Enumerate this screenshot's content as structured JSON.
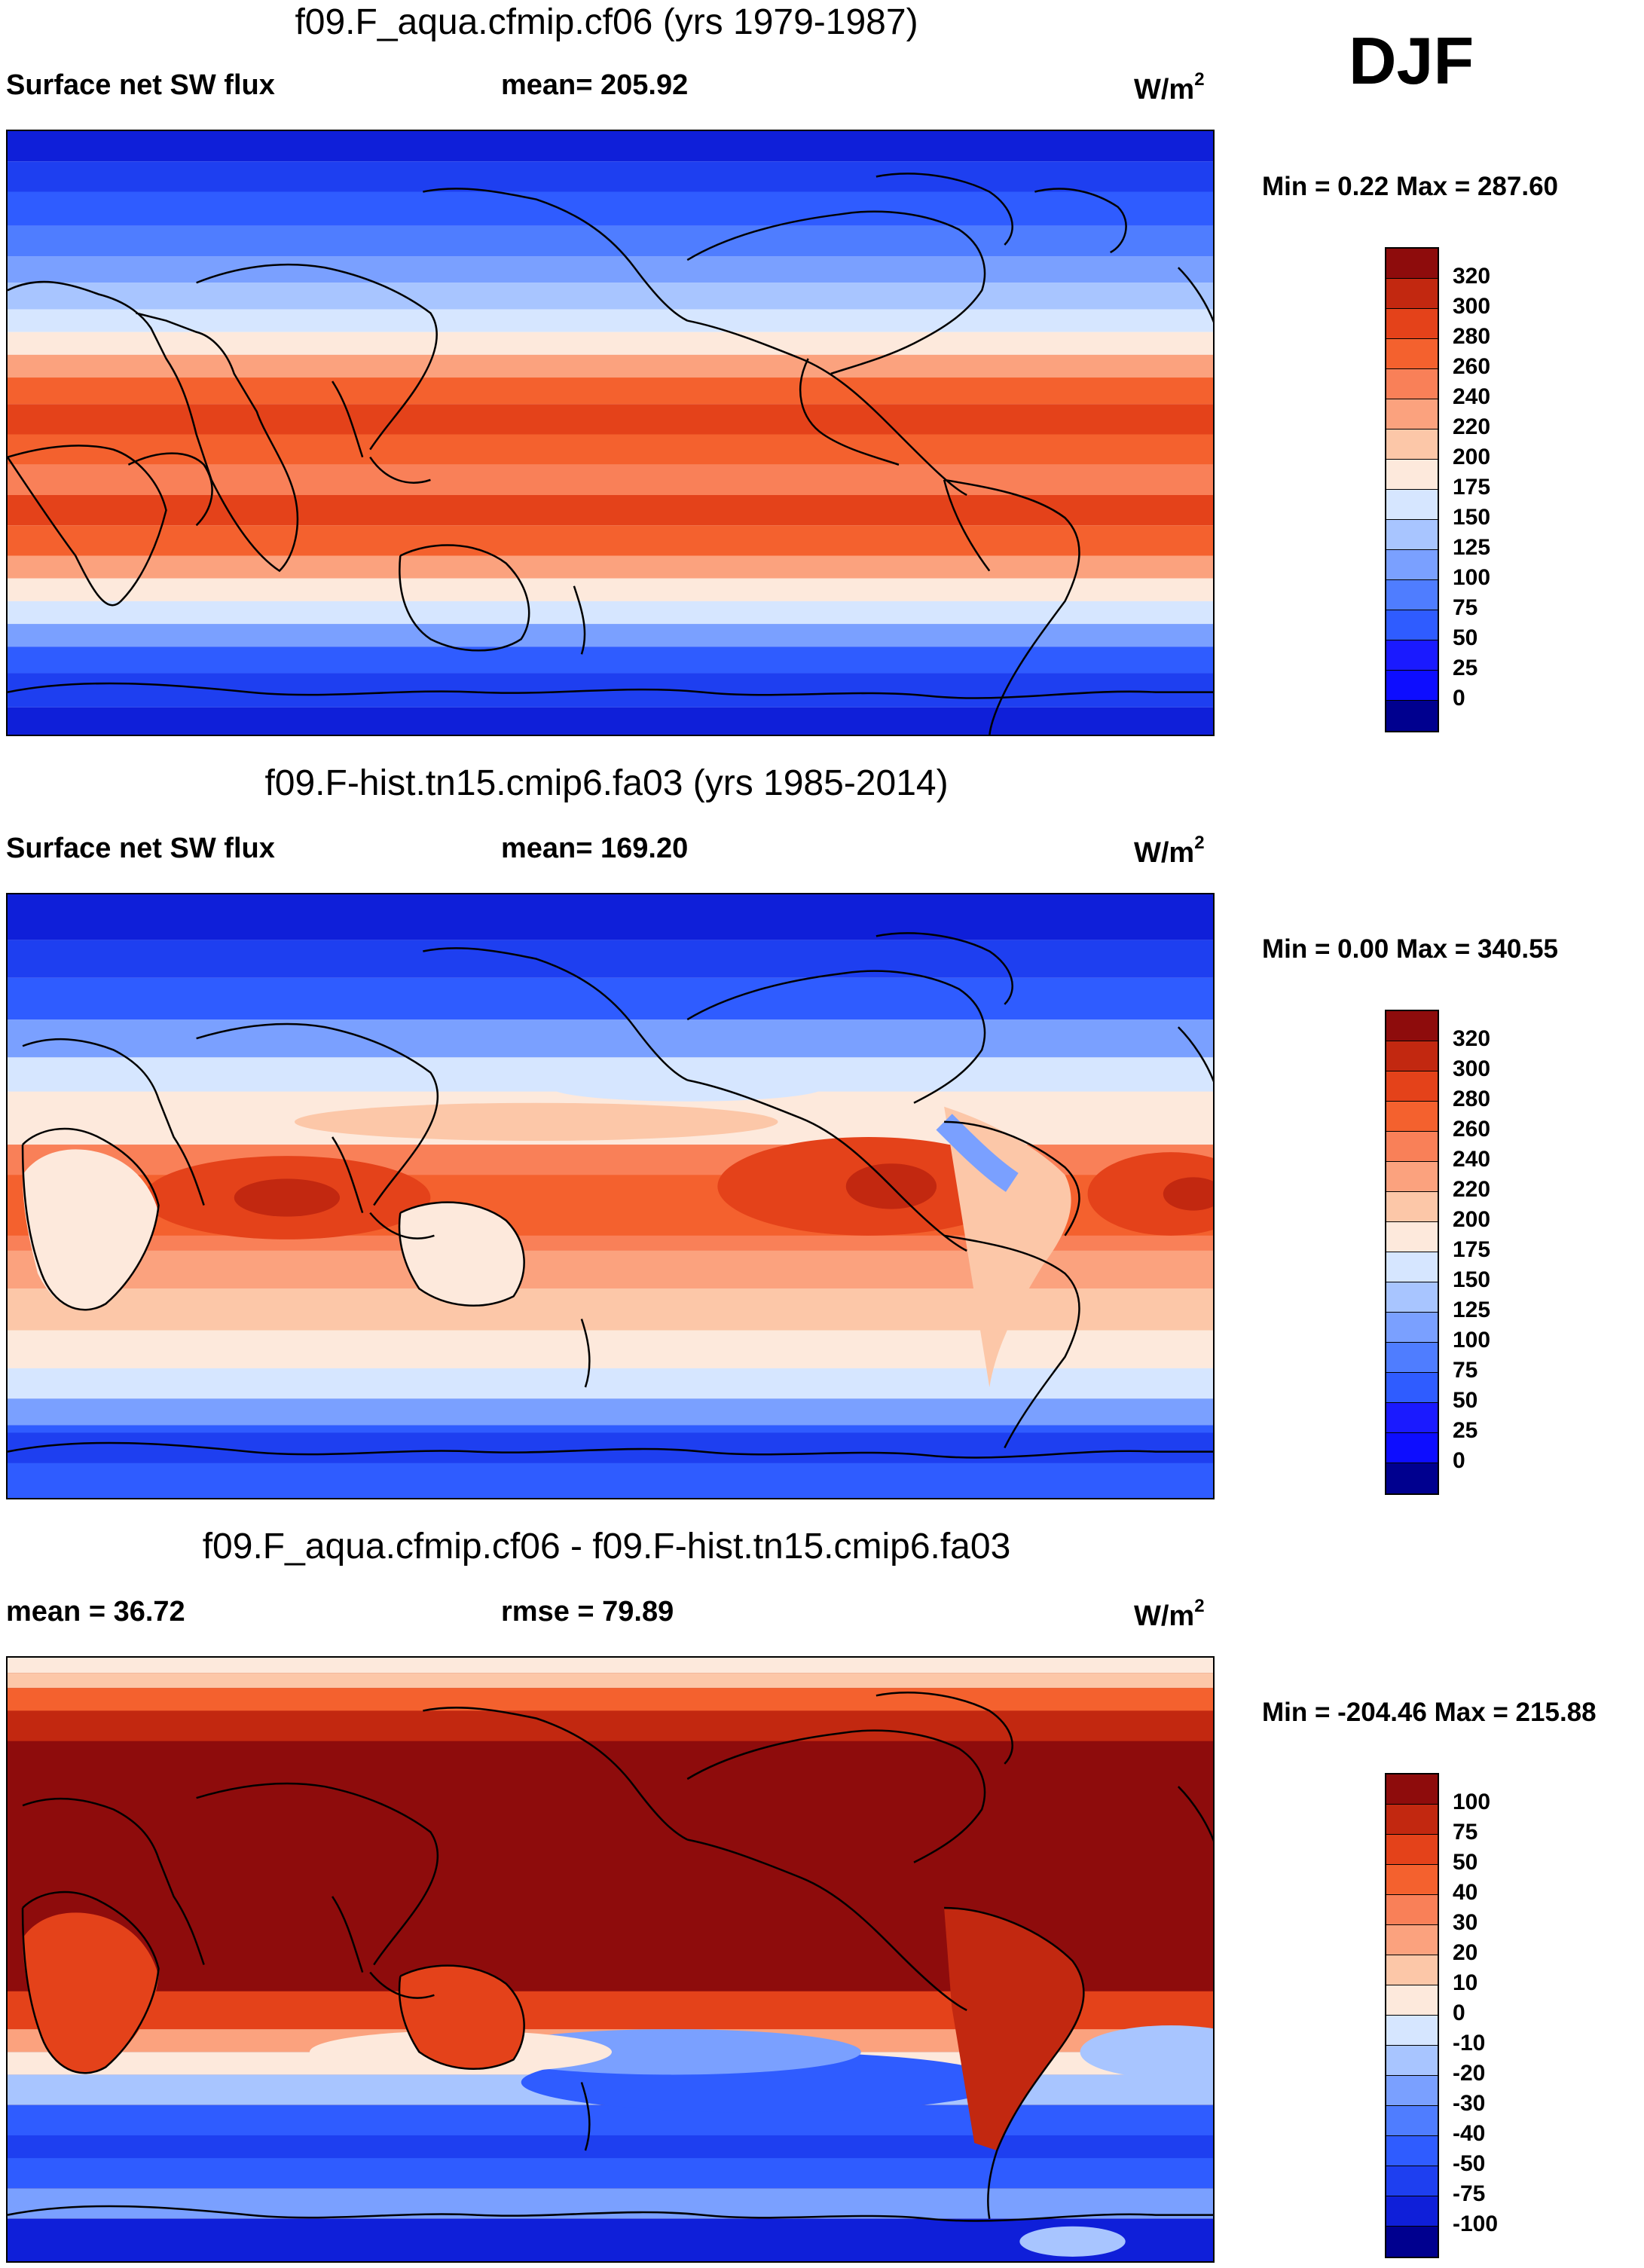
{
  "season": "DJF",
  "palette_abs": [
    "#0d0dff",
    "#1a1aff",
    "#2f5cff",
    "#4f7dff",
    "#7aa0ff",
    "#a8c5ff",
    "#d6e6ff",
    "#fde9dc",
    "#fcc7a8",
    "#fba27e",
    "#f98058",
    "#f4612e",
    "#e4421a",
    "#c22810",
    "#8e0c0c"
  ],
  "palette_abs_base": "#00008f",
  "palette_diff": [
    "#00008f",
    "#0f1fd9",
    "#1e3ff0",
    "#2f5cff",
    "#4f7dff",
    "#7aa0ff",
    "#a8c5ff",
    "#d6e6ff",
    "#fde9dc",
    "#fcc7a8",
    "#fba27e",
    "#f98058",
    "#f4612e",
    "#e4421a",
    "#c22810",
    "#8e0c0c"
  ],
  "panels": [
    {
      "title": "f09.F_aqua.cfmip.cf06 (yrs 1979-1987)",
      "left_label": "Surface net SW flux",
      "mid_label": "mean= 205.92",
      "unit_base": "W/m",
      "unit_exp": "2",
      "min_max": "Min =   0.22 Max = 287.60",
      "colorbar_labels": [
        "320",
        "300",
        "280",
        "260",
        "240",
        "220",
        "200",
        "175",
        "150",
        "125",
        "100",
        "75",
        "50",
        "25",
        "0"
      ],
      "map_kind": "aqua"
    },
    {
      "title": "f09.F-hist.tn15.cmip6.fa03 (yrs 1985-2014)",
      "left_label": "Surface net SW flux",
      "mid_label": "mean= 169.20",
      "unit_base": "W/m",
      "unit_exp": "2",
      "min_max": "Min =   0.00 Max = 340.55",
      "colorbar_labels": [
        "320",
        "300",
        "280",
        "260",
        "240",
        "220",
        "200",
        "175",
        "150",
        "125",
        "100",
        "75",
        "50",
        "25",
        "0"
      ],
      "map_kind": "hist"
    },
    {
      "title": "f09.F_aqua.cfmip.cf06 - f09.F-hist.tn15.cmip6.fa03",
      "left_label": "mean =  36.72",
      "mid_label": "rmse =  79.89",
      "unit_base": "W/m",
      "unit_exp": "2",
      "min_max": "Min = -204.46 Max = 215.88",
      "colorbar_labels": [
        "100",
        "75",
        "50",
        "40",
        "30",
        "20",
        "10",
        "0",
        "-10",
        "-20",
        "-30",
        "-40",
        "-50",
        "-75",
        "-100"
      ],
      "map_kind": "diff"
    }
  ]
}
